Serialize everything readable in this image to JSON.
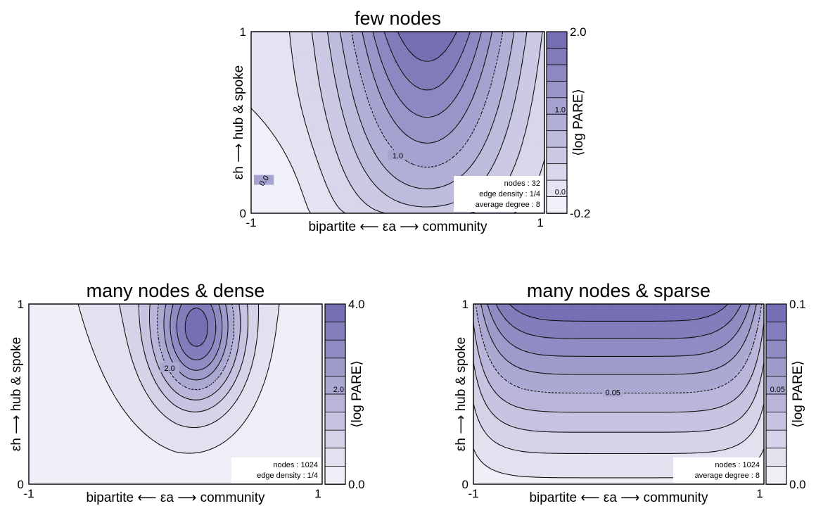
{
  "chart_data": [
    {
      "type": "heatmap",
      "title": "few nodes",
      "xlabel": "bipartite ⟵ εa ⟶ community",
      "ylabel": "εh ⟶ hub & spoke",
      "xlim": [
        -1,
        1
      ],
      "ylim": [
        0,
        1
      ],
      "x_ticks": [
        "-1",
        "1"
      ],
      "y_ticks": [
        "0",
        "1"
      ],
      "colorbar": {
        "label": "⟨log PARE⟩",
        "min": -0.2,
        "max": 2.0,
        "tick_labels": [
          "2.0",
          "-0.2"
        ],
        "marked_level": 1.0,
        "marked_label": "1.0",
        "extra_level": 0.0,
        "extra_label": "0.0",
        "n_levels": 11
      },
      "contour_labels": [
        "1.0",
        "0.0"
      ],
      "legend_box": [
        "nodes : 32",
        "edge density : 1/4",
        "average degree : 8"
      ],
      "peak": {
        "x": 0.2,
        "y": 1.0,
        "value": 2.0
      },
      "colors": {
        "high": "#6e68b0",
        "low": "#f6f6fb"
      }
    },
    {
      "type": "heatmap",
      "title": "many nodes & dense",
      "xlabel": "bipartite ⟵ εa ⟶ community",
      "ylabel": "εh ⟶ hub & spoke",
      "xlim": [
        -1,
        1
      ],
      "ylim": [
        0,
        1
      ],
      "x_ticks": [
        "-1",
        "1"
      ],
      "y_ticks": [
        "0",
        "1"
      ],
      "colorbar": {
        "label": "⟨log PARE⟩",
        "min": 0.0,
        "max": 4.0,
        "tick_labels": [
          "4.0",
          "0.0"
        ],
        "marked_level": 2.0,
        "marked_label": "2.0",
        "n_levels": 10
      },
      "contour_labels": [
        "2.0"
      ],
      "legend_box": [
        "nodes : 1024",
        "edge density : 1/4"
      ],
      "peak": {
        "x": 0.15,
        "y": 0.85,
        "value": 4.0
      },
      "colors": {
        "high": "#6e68b0",
        "low": "#f6f6fb"
      }
    },
    {
      "type": "heatmap",
      "title": "many nodes & sparse",
      "xlabel": "bipartite ⟵ εa ⟶ community",
      "ylabel": "εh ⟶ hub & spoke",
      "xlim": [
        -1,
        1
      ],
      "ylim": [
        0,
        1
      ],
      "x_ticks": [
        "-1",
        "1"
      ],
      "y_ticks": [
        "0",
        "1"
      ],
      "colorbar": {
        "label": "⟨log PARE⟩",
        "min": 0.0,
        "max": 0.1,
        "tick_labels": [
          "0.1",
          "0.0"
        ],
        "marked_level": 0.05,
        "marked_label": "0.05",
        "n_levels": 10
      },
      "contour_labels": [
        "0.05"
      ],
      "legend_box": [
        "nodes : 1024",
        "average degree : 8"
      ],
      "peak": {
        "x": 0.0,
        "y": 1.0,
        "value": 0.1
      },
      "colors": {
        "high": "#6e68b0",
        "low": "#f6f6fb"
      }
    }
  ]
}
